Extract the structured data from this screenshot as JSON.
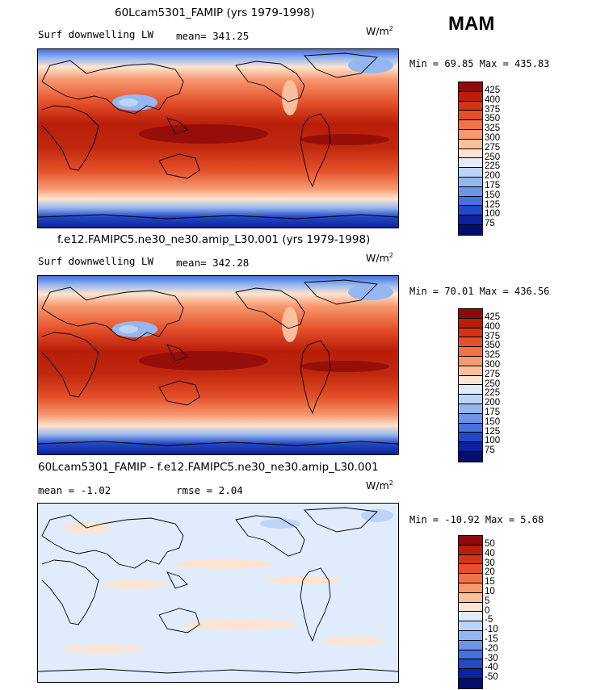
{
  "season": "MAM",
  "panels": [
    {
      "title": "60Lcam5301_FAMIP (yrs 1979-1998)",
      "left_label": "Surf downwelling LW",
      "mid_label": "mean= 341.25",
      "unit": "W/m",
      "unit_sup": "2",
      "minmax": "Min =  69.85 Max = 435.83",
      "levels": [
        "425",
        "400",
        "375",
        "350",
        "325",
        "300",
        "275",
        "250",
        "225",
        "200",
        "175",
        "150",
        "125",
        "100",
        "75"
      ],
      "colors": [
        "#8f0a0a",
        "#b81e0a",
        "#d23414",
        "#e4502a",
        "#f07347",
        "#f7986f",
        "#fbbf9c",
        "#fde4d0",
        "#e0ecfb",
        "#bcd4f7",
        "#95b7f0",
        "#6d93e6",
        "#4670da",
        "#2348c4",
        "#0c22a0",
        "#050e6e"
      ]
    },
    {
      "title": "f.e12.FAMIPC5.ne30_ne30.amip_L30.001 (yrs 1979-1998)",
      "left_label": "Surf downwelling LW",
      "mid_label": "mean= 342.28",
      "unit": "W/m",
      "unit_sup": "2",
      "minmax": "Min =  70.01 Max = 436.56",
      "levels": [
        "425",
        "400",
        "375",
        "350",
        "325",
        "300",
        "275",
        "250",
        "225",
        "200",
        "175",
        "150",
        "125",
        "100",
        "75"
      ],
      "colors": [
        "#8f0a0a",
        "#b81e0a",
        "#d23414",
        "#e4502a",
        "#f07347",
        "#f7986f",
        "#fbbf9c",
        "#fde4d0",
        "#e0ecfb",
        "#bcd4f7",
        "#95b7f0",
        "#6d93e6",
        "#4670da",
        "#2348c4",
        "#0c22a0",
        "#050e6e"
      ]
    },
    {
      "title": "60Lcam5301_FAMIP - f.e12.FAMIPC5.ne30_ne30.amip_L30.001",
      "left_label": "mean =  -1.02",
      "mid_label": "rmse =   2.04",
      "unit": "W/m",
      "unit_sup": "2",
      "minmax": "Min = -10.92 Max =   5.68",
      "levels": [
        "50",
        "40",
        "30",
        "20",
        "15",
        "10",
        "5",
        "0",
        "-5",
        "-10",
        "-15",
        "-20",
        "-30",
        "-40",
        "-50"
      ],
      "colors": [
        "#8f0a0a",
        "#b81e0a",
        "#d23414",
        "#e4502a",
        "#f07347",
        "#f7986f",
        "#fbbf9c",
        "#fde4d0",
        "#e0ecfb",
        "#bcd4f7",
        "#95b7f0",
        "#6d93e6",
        "#4670da",
        "#2348c4",
        "#0c22a0",
        "#050e6e"
      ]
    }
  ]
}
